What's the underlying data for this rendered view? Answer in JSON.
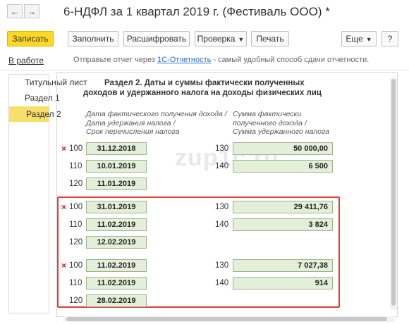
{
  "window": {
    "title": "6-НДФЛ за 1 квартал 2019 г. (Фестиваль ООО) *",
    "back_icon": "←",
    "forward_icon": "→"
  },
  "toolbar": {
    "save_label": "Записать",
    "fill_label": "Заполнить",
    "decode_label": "Расшифровать",
    "check_label": "Проверка",
    "print_label": "Печать",
    "more_label": "Еще",
    "help_label": "?"
  },
  "status": {
    "tab_label": "В работе",
    "info_before": "Отправьте отчет через ",
    "info_link": "1С-Отчетность",
    "info_after": " - самый удобный способ сдачи отчетности."
  },
  "sidebar": {
    "items": [
      {
        "label": "Титульный лист"
      },
      {
        "label": "Раздел 1"
      },
      {
        "label": "Раздел 2"
      }
    ]
  },
  "section": {
    "title_line1": "Раздел 2.  Даты и суммы фактически полученных",
    "title_line2": "доходов и удержанного налога на доходы физических лиц",
    "header_left": [
      "Дата фактического получения дохода /",
      "Дата удержания налога /",
      "Срок перечисления налога"
    ],
    "header_right": [
      "Сумма фактически",
      "полученного дохода /",
      "Сумма удержанного налога"
    ],
    "watermark": "zup1c.ru",
    "blocks": [
      {
        "line100": "31.12.2018",
        "line110": "10.01.2019",
        "line120": "11.01.2019",
        "line130": "50 000,00",
        "line140": "6 500"
      },
      {
        "line100": "31.01.2019",
        "line110": "11.02.2019",
        "line120": "12.02.2019",
        "line130": "29 411,76",
        "line140": "3 824"
      },
      {
        "line100": "11.02.2019",
        "line110": "11.02.2019",
        "line120": "28.02.2019",
        "line130": "7 027,38",
        "line140": "914"
      }
    ],
    "codes": {
      "c100": "100",
      "c110": "110",
      "c120": "120",
      "c130": "130",
      "c140": "140"
    },
    "mark": "×"
  },
  "colors": {
    "primary_button": "#ffd823",
    "field_bg": "#e3efd9",
    "highlight": "#e23b3b",
    "link": "#2a6fc9",
    "selected_tab": "#f7e06a"
  }
}
